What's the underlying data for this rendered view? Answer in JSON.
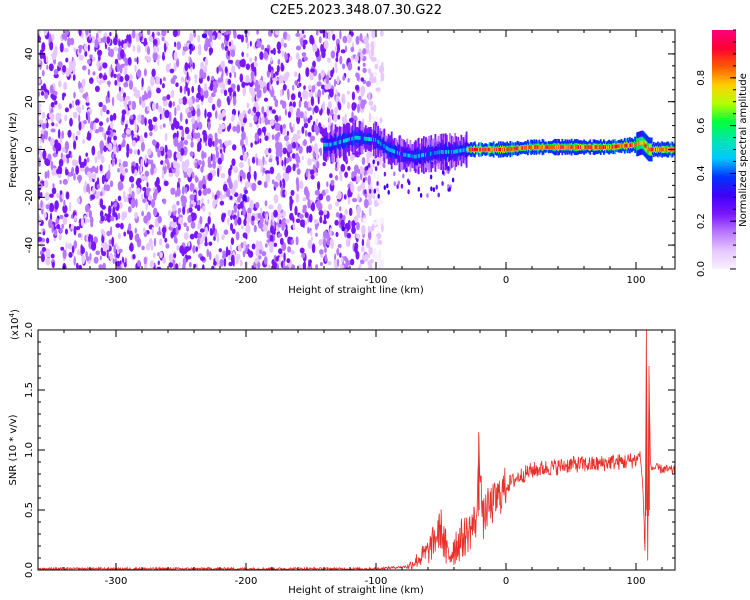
{
  "figure_title": "C2E5.2023.348.07.30.G22",
  "colors": {
    "snr_line": "#e8302b",
    "axis": "#000000",
    "colormap": [
      "#f9f0ff",
      "#e6c7ff",
      "#b877ff",
      "#7a16ff",
      "#4000ff",
      "#0032ff",
      "#00c8ff",
      "#00e6b0",
      "#00ff3c",
      "#b4ff00",
      "#ffd000",
      "#ff5a00",
      "#ff0033",
      "#ff0080"
    ]
  },
  "chart_data": [
    {
      "type": "heatmap",
      "title": "C2E5.2023.348.07.30.G22",
      "xlabel": "Height of straight line (km)",
      "ylabel": "Frequency (Hz)",
      "xlim": [
        -360,
        130
      ],
      "ylim": [
        -50,
        50
      ],
      "x_ticks": [
        -300,
        -200,
        -100,
        0,
        100
      ],
      "y_ticks": [
        -40,
        -20,
        0,
        20,
        40
      ],
      "grid": false,
      "description_regions": [
        {
          "x_range": [
            -360,
            -95
          ],
          "content": "broadband noise across full frequency range, low amplitude (~0.1-0.2)"
        },
        {
          "x_range": [
            -140,
            -30
          ],
          "content": "emerging signal near 0 Hz, amplitude ~0.3-0.5"
        },
        {
          "x_range": [
            -30,
            130
          ],
          "content": "strong narrow signal at ~0-2 Hz, amplitude ~0.7-0.95"
        }
      ],
      "ridge": {
        "x": [
          -135,
          -115,
          -100,
          -90,
          -80,
          -70,
          -60,
          -50,
          -40,
          -30,
          -20,
          -10,
          0,
          20,
          40,
          60,
          80,
          100,
          105,
          110,
          130
        ],
        "freq": [
          2,
          5,
          4,
          0,
          -2,
          -3,
          -2,
          -1,
          -1,
          0,
          0,
          0,
          0,
          1,
          1,
          1,
          1,
          2,
          3,
          0,
          0
        ]
      },
      "colorbar": {
        "label": "Normalized spectral amplitude",
        "range": [
          0,
          1
        ],
        "ticks": [
          0.0,
          0.2,
          0.4,
          0.6,
          0.8
        ]
      }
    },
    {
      "type": "line",
      "xlabel": "Height of straight line (km)",
      "ylabel": "SNR (10 * v/v)",
      "scale_label": "(x10",
      "scale_exp": "4",
      "scale_close": ")",
      "xlim": [
        -360,
        130
      ],
      "ylim": [
        0,
        2.0
      ],
      "x_ticks": [
        -300,
        -200,
        -100,
        0,
        100
      ],
      "y_ticks": [
        0.0,
        0.5,
        1.0,
        1.5,
        2.0
      ],
      "grid": false,
      "series": [
        {
          "x": [
            -360,
            -300,
            -200,
            -150,
            -100,
            -75,
            -60,
            -55,
            -50,
            -45,
            -40,
            -35,
            -30,
            -25,
            -22,
            -21,
            -18,
            -15,
            -10,
            -5,
            0,
            10,
            20,
            30,
            40,
            50,
            60,
            70,
            80,
            90,
            100,
            103,
            105,
            107,
            108,
            109,
            110,
            111,
            112,
            115,
            120,
            130
          ],
          "y": [
            0.01,
            0.01,
            0.01,
            0.01,
            0.01,
            0.03,
            0.15,
            0.25,
            0.35,
            0.1,
            0.2,
            0.25,
            0.3,
            0.38,
            0.45,
            1.15,
            0.4,
            0.5,
            0.55,
            0.62,
            0.7,
            0.78,
            0.83,
            0.85,
            0.86,
            0.88,
            0.88,
            0.88,
            0.9,
            0.9,
            0.92,
            0.97,
            0.75,
            0.15,
            2.0,
            0.1,
            1.7,
            0.9,
            0.85,
            0.85,
            0.84,
            0.83
          ]
        }
      ]
    }
  ]
}
